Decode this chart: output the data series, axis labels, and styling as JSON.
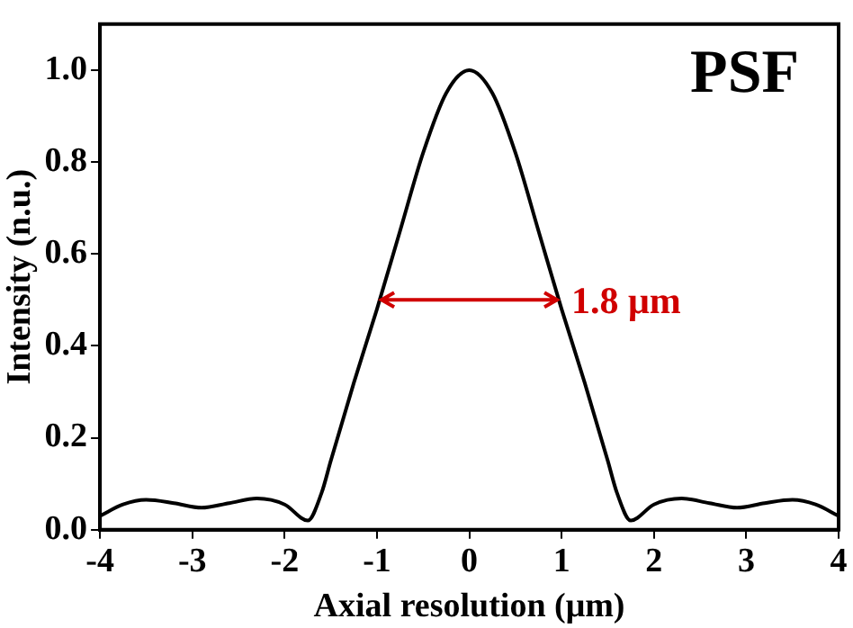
{
  "chart_data": {
    "type": "line",
    "title": "PSF",
    "xlabel": "Axial resolution (μm)",
    "ylabel": "Intensity (n.u.)",
    "x": [
      -4,
      -3.75,
      -3.5,
      -3.2,
      -2.9,
      -2.6,
      -2.3,
      -2.0,
      -1.75,
      -1.6,
      -1.5,
      -1.25,
      -1,
      -0.75,
      -0.5,
      -0.25,
      0,
      0.25,
      0.5,
      0.75,
      1,
      1.25,
      1.5,
      1.6,
      1.75,
      2.0,
      2.3,
      2.6,
      2.9,
      3.2,
      3.5,
      3.75,
      4
    ],
    "series": [
      {
        "color": "#000000",
        "values": [
          0.03,
          0.055,
          0.065,
          0.058,
          0.048,
          0.058,
          0.068,
          0.055,
          0.02,
          0.08,
          0.15,
          0.32,
          0.48,
          0.65,
          0.82,
          0.95,
          1.0,
          0.95,
          0.82,
          0.65,
          0.48,
          0.32,
          0.15,
          0.08,
          0.02,
          0.055,
          0.068,
          0.058,
          0.048,
          0.058,
          0.065,
          0.055,
          0.03
        ]
      }
    ],
    "xlim": [
      -4,
      4
    ],
    "xticks": [
      -4,
      -3,
      -2,
      -1,
      0,
      1,
      2,
      3,
      4
    ],
    "ylim": [
      0,
      1.1
    ],
    "yticks": [
      {
        "value": 0,
        "label": "0.0"
      },
      {
        "value": 0.2,
        "label": "0.2"
      },
      {
        "value": 0.4,
        "label": "0.4"
      },
      {
        "value": 0.6,
        "label": "0.6"
      },
      {
        "value": 0.8,
        "label": "0.8"
      },
      {
        "value": 1,
        "label": "1.0"
      }
    ],
    "annotations": [
      {
        "text": "1.8 μm",
        "x": 0.95,
        "y": 0.5
      }
    ],
    "grid": false,
    "legend": false,
    "marker": "none",
    "line_style": "solid"
  }
}
